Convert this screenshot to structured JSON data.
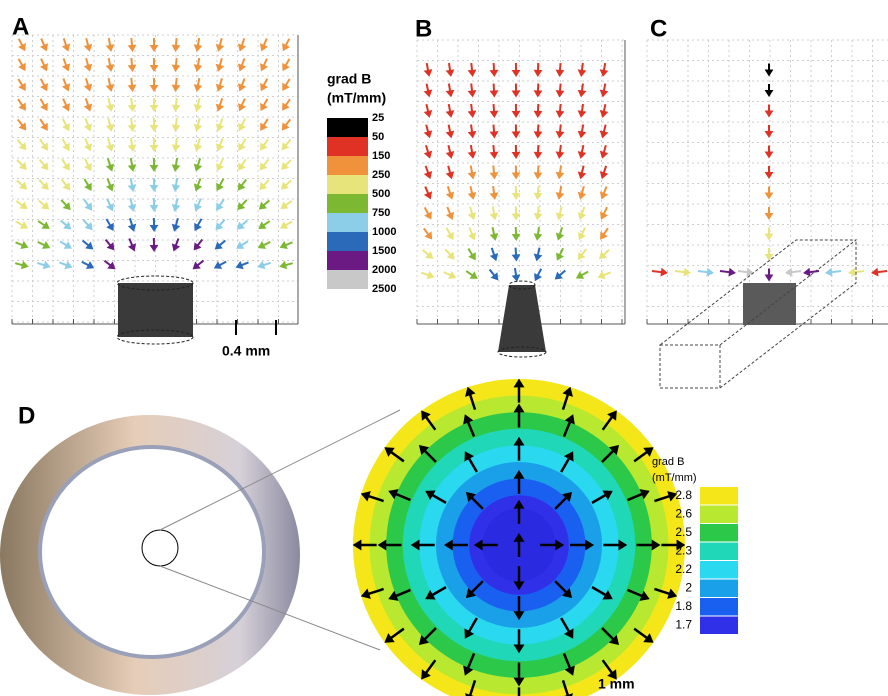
{
  "panel_labels": [
    "A",
    "B",
    "C",
    "D"
  ],
  "legend_top": {
    "title": "grad B",
    "unit": "(mT/mm)",
    "labels": [
      "25",
      "50",
      "150",
      "250",
      "500",
      "750",
      "1000",
      "1500",
      "2000",
      "2500"
    ],
    "colors": [
      "#000000",
      "#e03224",
      "#f0923c",
      "#e8e47c",
      "#7cb832",
      "#8ccde8",
      "#2a6ab8",
      "#6a1a82",
      "#c8c8c8"
    ]
  },
  "scale_top": "0.4 mm",
  "legend_bottom": {
    "title": "grad B",
    "unit": "(mT/mm)",
    "labels": [
      "2.8",
      "2.6",
      "2.5",
      "2.3",
      "2.2",
      "2",
      "1.8",
      "1.7"
    ],
    "colors": [
      "#f5e61a",
      "#b8e830",
      "#2cc84a",
      "#20d8b8",
      "#2ad8f0",
      "#1aa0e8",
      "#1a60f0",
      "#3030e8"
    ]
  },
  "scale_bottom": "1 mm"
}
